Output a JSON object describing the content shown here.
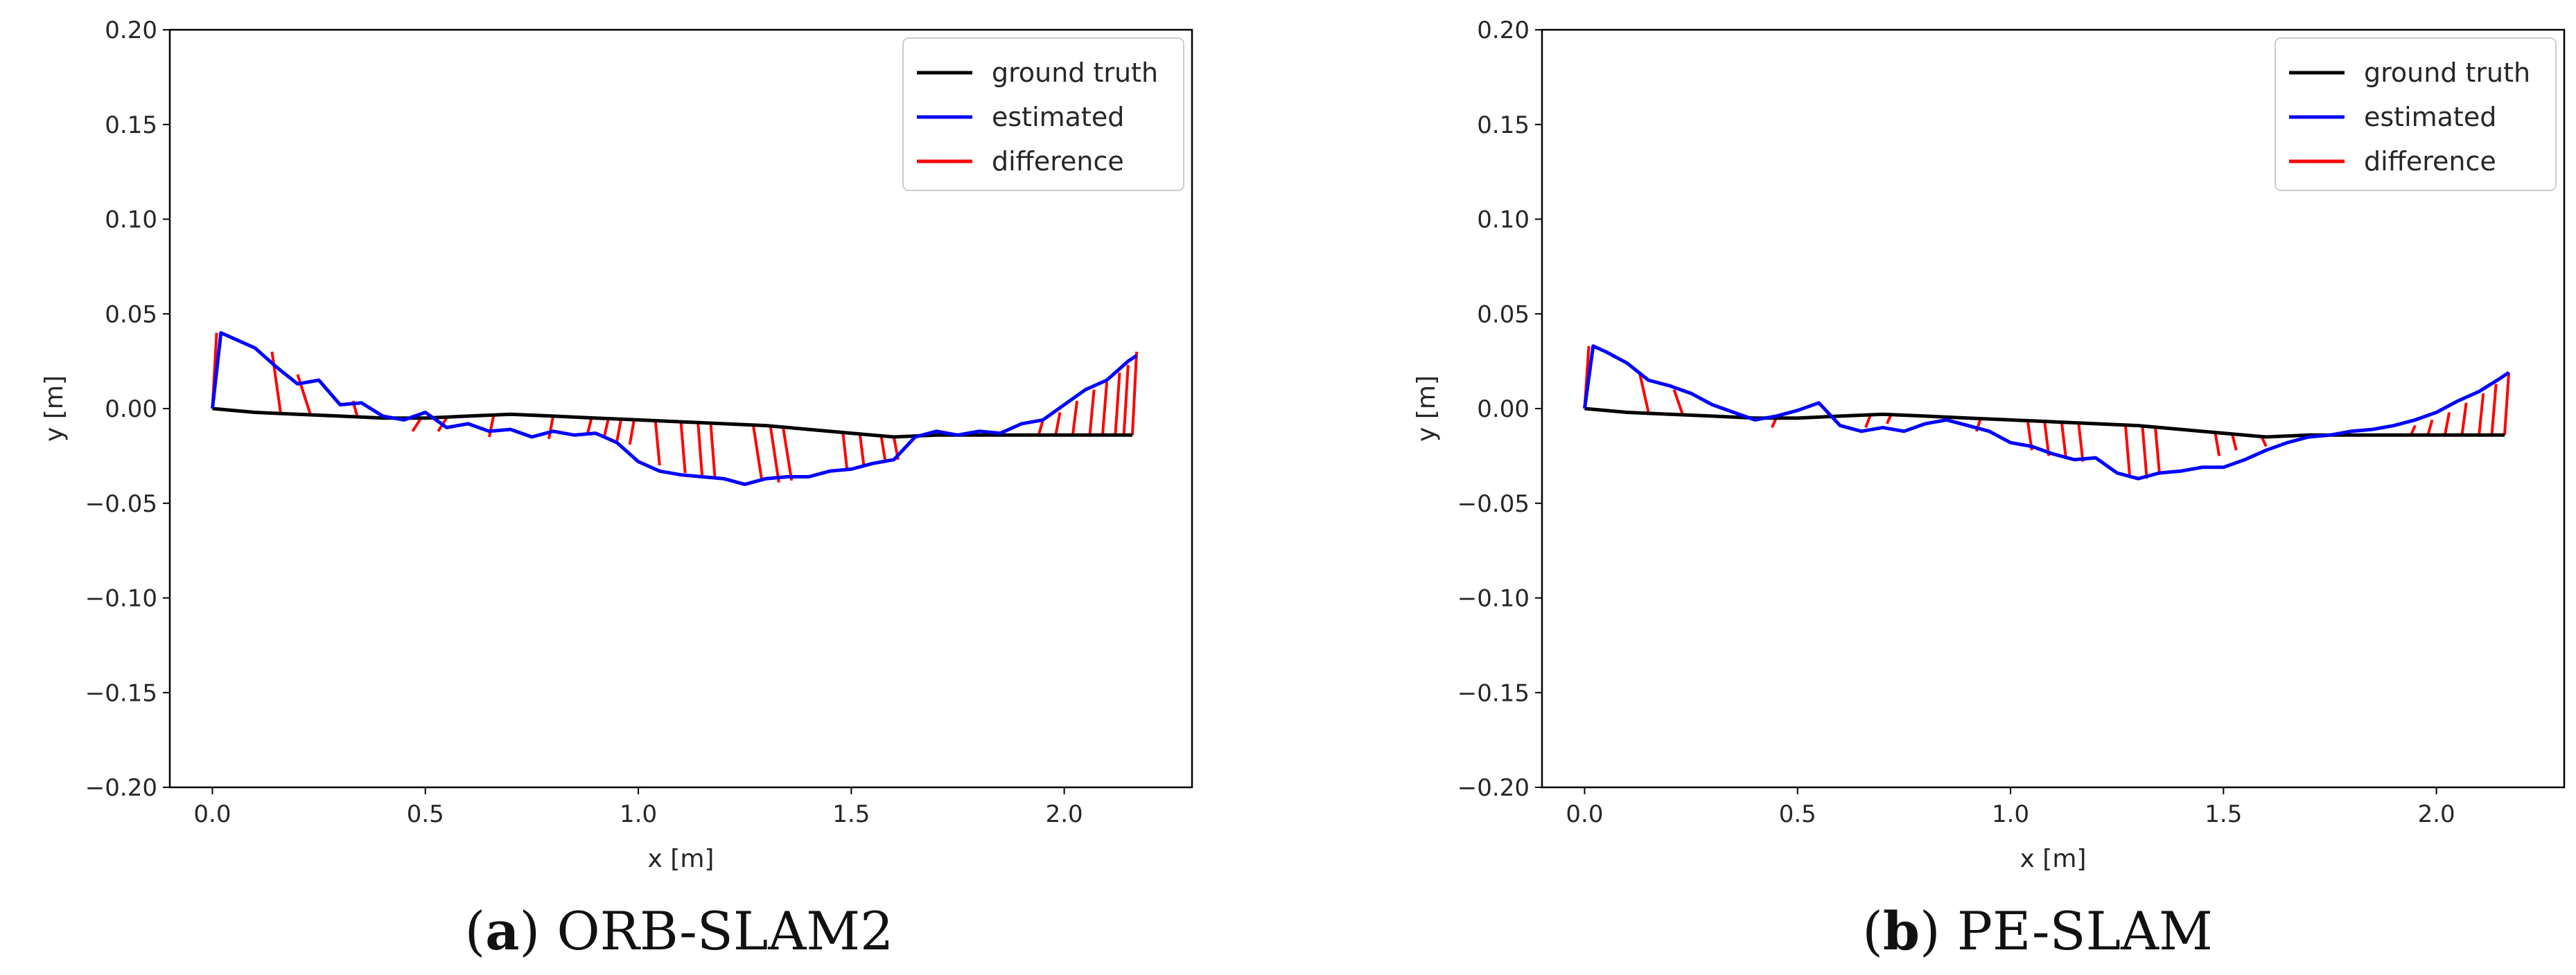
{
  "chart_data": [
    {
      "type": "line",
      "title": "",
      "xlabel": "x [m]",
      "ylabel": "y [m]",
      "xlim": [
        -0.1,
        2.3
      ],
      "ylim": [
        -0.2,
        0.2
      ],
      "xticks": [
        0.0,
        0.5,
        1.0,
        1.5,
        2.0
      ],
      "xtick_labels": [
        "0.0",
        "0.5",
        "1.0",
        "1.5",
        "2.0"
      ],
      "yticks": [
        0.2,
        0.15,
        0.1,
        0.05,
        0.0,
        -0.05,
        -0.1,
        -0.15,
        -0.2
      ],
      "ytick_labels": [
        "0.20",
        "0.15",
        "0.10",
        "0.05",
        "0.00",
        "−0.05",
        "−0.10",
        "−0.15",
        "−0.20"
      ],
      "legend_position": "top-right",
      "legend": [
        "ground truth",
        "estimated",
        "difference"
      ],
      "colors": {
        "ground truth": "#000000",
        "estimated": "#0000ff",
        "difference": "#ff0000"
      },
      "series": [
        {
          "name": "ground truth",
          "x": [
            0.0,
            0.1,
            0.2,
            0.3,
            0.4,
            0.5,
            0.6,
            0.7,
            0.8,
            0.9,
            1.0,
            1.1,
            1.2,
            1.3,
            1.4,
            1.5,
            1.6,
            1.7,
            1.8,
            1.9,
            2.0,
            2.1,
            2.16
          ],
          "y": [
            0.0,
            -0.002,
            -0.003,
            -0.004,
            -0.005,
            -0.005,
            -0.004,
            -0.003,
            -0.004,
            -0.005,
            -0.006,
            -0.007,
            -0.008,
            -0.009,
            -0.011,
            -0.013,
            -0.015,
            -0.014,
            -0.014,
            -0.014,
            -0.014,
            -0.014,
            -0.014
          ]
        },
        {
          "name": "estimated",
          "x": [
            0.0,
            0.02,
            0.05,
            0.1,
            0.15,
            0.2,
            0.25,
            0.3,
            0.35,
            0.4,
            0.45,
            0.5,
            0.55,
            0.6,
            0.65,
            0.7,
            0.75,
            0.8,
            0.85,
            0.9,
            0.95,
            1.0,
            1.05,
            1.1,
            1.15,
            1.2,
            1.25,
            1.3,
            1.35,
            1.4,
            1.45,
            1.5,
            1.55,
            1.6,
            1.65,
            1.7,
            1.75,
            1.8,
            1.85,
            1.9,
            1.95,
            2.0,
            2.05,
            2.1,
            2.15,
            2.17
          ],
          "y": [
            0.0,
            0.04,
            0.037,
            0.032,
            0.022,
            0.013,
            0.015,
            0.002,
            0.003,
            -0.004,
            -0.006,
            -0.002,
            -0.01,
            -0.008,
            -0.012,
            -0.011,
            -0.015,
            -0.012,
            -0.014,
            -0.013,
            -0.018,
            -0.028,
            -0.033,
            -0.035,
            -0.036,
            -0.037,
            -0.04,
            -0.037,
            -0.036,
            -0.036,
            -0.033,
            -0.032,
            -0.029,
            -0.027,
            -0.015,
            -0.012,
            -0.014,
            -0.012,
            -0.013,
            -0.008,
            -0.006,
            0.002,
            0.01,
            0.015,
            0.025,
            0.028
          ]
        },
        {
          "name": "difference",
          "segments": [
            [
              0.0,
              0.0,
              0.01,
              0.04
            ],
            [
              0.16,
              -0.002,
              0.14,
              0.03
            ],
            [
              0.23,
              -0.003,
              0.2,
              0.018
            ],
            [
              0.34,
              -0.004,
              0.33,
              0.004
            ],
            [
              0.49,
              -0.005,
              0.47,
              -0.012
            ],
            [
              0.55,
              -0.005,
              0.53,
              -0.012
            ],
            [
              0.66,
              -0.004,
              0.65,
              -0.015
            ],
            [
              0.8,
              -0.004,
              0.79,
              -0.016
            ],
            [
              0.89,
              -0.005,
              0.88,
              -0.014
            ],
            [
              0.93,
              -0.005,
              0.92,
              -0.015
            ],
            [
              0.96,
              -0.005,
              0.95,
              -0.017
            ],
            [
              0.99,
              -0.006,
              0.98,
              -0.019
            ],
            [
              1.04,
              -0.006,
              1.05,
              -0.03
            ],
            [
              1.1,
              -0.007,
              1.11,
              -0.034
            ],
            [
              1.14,
              -0.007,
              1.15,
              -0.036
            ],
            [
              1.17,
              -0.008,
              1.18,
              -0.037
            ],
            [
              1.27,
              -0.009,
              1.29,
              -0.038
            ],
            [
              1.31,
              -0.009,
              1.33,
              -0.039
            ],
            [
              1.34,
              -0.01,
              1.36,
              -0.038
            ],
            [
              1.48,
              -0.012,
              1.49,
              -0.032
            ],
            [
              1.52,
              -0.013,
              1.53,
              -0.031
            ],
            [
              1.57,
              -0.014,
              1.58,
              -0.028
            ],
            [
              1.6,
              -0.015,
              1.61,
              -0.027
            ],
            [
              1.94,
              -0.014,
              1.95,
              -0.006
            ],
            [
              1.98,
              -0.014,
              1.99,
              -0.002
            ],
            [
              2.02,
              -0.014,
              2.03,
              0.004
            ],
            [
              2.06,
              -0.014,
              2.07,
              0.01
            ],
            [
              2.09,
              -0.014,
              2.1,
              0.014
            ],
            [
              2.12,
              -0.014,
              2.13,
              0.019
            ],
            [
              2.14,
              -0.014,
              2.15,
              0.023
            ],
            [
              2.16,
              -0.014,
              2.17,
              0.03
            ]
          ]
        }
      ]
    },
    {
      "type": "line",
      "title": "",
      "xlabel": "x [m]",
      "ylabel": "y [m]",
      "xlim": [
        -0.1,
        2.3
      ],
      "ylim": [
        -0.2,
        0.2
      ],
      "xticks": [
        0.0,
        0.5,
        1.0,
        1.5,
        2.0
      ],
      "xtick_labels": [
        "0.0",
        "0.5",
        "1.0",
        "1.5",
        "2.0"
      ],
      "yticks": [
        0.2,
        0.15,
        0.1,
        0.05,
        0.0,
        -0.05,
        -0.1,
        -0.15,
        -0.2
      ],
      "ytick_labels": [
        "0.20",
        "0.15",
        "0.10",
        "0.05",
        "0.00",
        "−0.05",
        "−0.10",
        "−0.15",
        "−0.20"
      ],
      "legend_position": "top-right",
      "legend": [
        "ground truth",
        "estimated",
        "difference"
      ],
      "colors": {
        "ground truth": "#000000",
        "estimated": "#0000ff",
        "difference": "#ff0000"
      },
      "series": [
        {
          "name": "ground truth",
          "x": [
            0.0,
            0.1,
            0.2,
            0.3,
            0.4,
            0.5,
            0.6,
            0.7,
            0.8,
            0.9,
            1.0,
            1.1,
            1.2,
            1.3,
            1.4,
            1.5,
            1.6,
            1.7,
            1.8,
            1.9,
            2.0,
            2.1,
            2.16
          ],
          "y": [
            0.0,
            -0.002,
            -0.003,
            -0.004,
            -0.005,
            -0.005,
            -0.004,
            -0.003,
            -0.004,
            -0.005,
            -0.006,
            -0.007,
            -0.008,
            -0.009,
            -0.011,
            -0.013,
            -0.015,
            -0.014,
            -0.014,
            -0.014,
            -0.014,
            -0.014,
            -0.014
          ]
        },
        {
          "name": "estimated",
          "x": [
            0.0,
            0.02,
            0.05,
            0.1,
            0.15,
            0.2,
            0.25,
            0.3,
            0.35,
            0.4,
            0.45,
            0.5,
            0.55,
            0.6,
            0.65,
            0.7,
            0.75,
            0.8,
            0.85,
            0.9,
            0.95,
            1.0,
            1.05,
            1.1,
            1.15,
            1.2,
            1.25,
            1.3,
            1.35,
            1.4,
            1.45,
            1.5,
            1.55,
            1.6,
            1.65,
            1.7,
            1.75,
            1.8,
            1.85,
            1.9,
            1.95,
            2.0,
            2.05,
            2.1,
            2.15,
            2.17
          ],
          "y": [
            0.0,
            0.033,
            0.03,
            0.024,
            0.015,
            0.012,
            0.008,
            0.002,
            -0.002,
            -0.006,
            -0.004,
            -0.001,
            0.003,
            -0.009,
            -0.012,
            -0.01,
            -0.012,
            -0.008,
            -0.006,
            -0.009,
            -0.012,
            -0.018,
            -0.02,
            -0.024,
            -0.027,
            -0.026,
            -0.034,
            -0.037,
            -0.034,
            -0.033,
            -0.031,
            -0.031,
            -0.027,
            -0.022,
            -0.018,
            -0.015,
            -0.014,
            -0.012,
            -0.011,
            -0.009,
            -0.006,
            -0.002,
            0.004,
            0.009,
            0.016,
            0.019
          ]
        },
        {
          "name": "difference",
          "segments": [
            [
              0.0,
              0.0,
              0.01,
              0.033
            ],
            [
              0.15,
              -0.002,
              0.13,
              0.018
            ],
            [
              0.23,
              -0.003,
              0.21,
              0.01
            ],
            [
              0.37,
              -0.004,
              0.36,
              -0.005
            ],
            [
              0.45,
              -0.005,
              0.44,
              -0.01
            ],
            [
              0.58,
              -0.005,
              0.57,
              -0.002
            ],
            [
              0.67,
              -0.004,
              0.66,
              -0.01
            ],
            [
              0.72,
              -0.003,
              0.71,
              -0.008
            ],
            [
              0.93,
              -0.005,
              0.92,
              -0.012
            ],
            [
              1.04,
              -0.006,
              1.05,
              -0.022
            ],
            [
              1.08,
              -0.007,
              1.09,
              -0.025
            ],
            [
              1.12,
              -0.007,
              1.13,
              -0.026
            ],
            [
              1.16,
              -0.008,
              1.17,
              -0.028
            ],
            [
              1.27,
              -0.009,
              1.28,
              -0.036
            ],
            [
              1.31,
              -0.01,
              1.32,
              -0.037
            ],
            [
              1.34,
              -0.01,
              1.35,
              -0.035
            ],
            [
              1.48,
              -0.012,
              1.49,
              -0.025
            ],
            [
              1.52,
              -0.013,
              1.53,
              -0.022
            ],
            [
              1.59,
              -0.015,
              1.6,
              -0.02
            ],
            [
              1.94,
              -0.014,
              1.95,
              -0.009
            ],
            [
              1.98,
              -0.014,
              1.99,
              -0.006
            ],
            [
              2.02,
              -0.014,
              2.03,
              -0.002
            ],
            [
              2.06,
              -0.014,
              2.07,
              0.003
            ],
            [
              2.1,
              -0.014,
              2.11,
              0.008
            ],
            [
              2.13,
              -0.014,
              2.14,
              0.013
            ],
            [
              2.16,
              -0.014,
              2.17,
              0.019
            ]
          ]
        }
      ]
    }
  ],
  "captions": [
    {
      "letter": "a",
      "text": "ORB-SLAM2"
    },
    {
      "letter": "b",
      "text": "PE-SLAM"
    }
  ]
}
